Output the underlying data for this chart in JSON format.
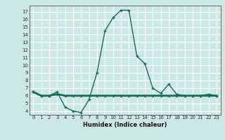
{
  "x": [
    0,
    1,
    2,
    3,
    4,
    5,
    6,
    7,
    8,
    9,
    10,
    11,
    12,
    13,
    14,
    15,
    16,
    17,
    18,
    19,
    20,
    21,
    22,
    23
  ],
  "y_curve": [
    6.5,
    6.0,
    6.0,
    6.5,
    4.5,
    4.0,
    3.8,
    5.5,
    9.0,
    14.5,
    16.2,
    17.2,
    17.2,
    11.2,
    10.2,
    7.0,
    6.3,
    7.5,
    6.2,
    6.0,
    6.0,
    6.0,
    6.2,
    6.0
  ],
  "y_flat": [
    6.5,
    6.0,
    6.0,
    6.2,
    6.0,
    6.0,
    6.0,
    6.0,
    6.0,
    6.0,
    6.0,
    6.0,
    6.0,
    6.0,
    6.0,
    6.0,
    6.0,
    6.0,
    6.0,
    6.0,
    6.0,
    6.0,
    6.0,
    6.0
  ],
  "line_color": "#1a6b5a",
  "bg_color": "#cce8e6",
  "grid_color": "#ffffff",
  "ylabel_ticks": [
    4,
    5,
    6,
    7,
    8,
    9,
    10,
    11,
    12,
    13,
    14,
    15,
    16,
    17
  ],
  "xlabel": "Humidex (Indice chaleur)",
  "ylim": [
    3.5,
    17.8
  ],
  "xlim": [
    -0.5,
    23.5
  ]
}
